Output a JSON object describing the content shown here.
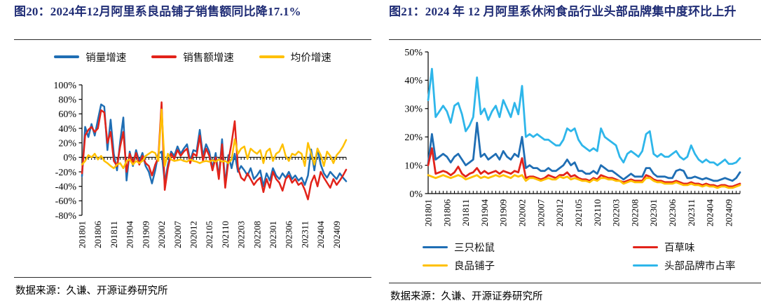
{
  "figure20": {
    "title": "图20：2024年12月阿里系良品铺子销售额同比降17.1%",
    "source": "数据来源：久谦、开源证券研究所"
  },
  "figure21": {
    "title": "图21：2024 年 12 月阿里系休闲食品行业头部品牌集中度环比上升",
    "source": "数据来源：久谦、开源证券研究所"
  },
  "chart_data": [
    {
      "id": "fig20",
      "type": "line",
      "title": "2024年12月阿里系良品铺子销售额同比降17.1%",
      "x": [
        "201801",
        "201802",
        "201803",
        "201804",
        "201805",
        "201806",
        "201807",
        "201808",
        "201809",
        "201810",
        "201811",
        "201812",
        "201901",
        "201902",
        "201903",
        "201904",
        "201905",
        "201906",
        "201907",
        "201908",
        "201909",
        "201910",
        "201911",
        "201912",
        "202001",
        "202002",
        "202003",
        "202004",
        "202005",
        "202006",
        "202007",
        "202008",
        "202009",
        "202010",
        "202011",
        "202012",
        "202101",
        "202102",
        "202103",
        "202104",
        "202105",
        "202106",
        "202107",
        "202108",
        "202109",
        "202110",
        "202111",
        "202112",
        "202201",
        "202202",
        "202203",
        "202204",
        "202205",
        "202206",
        "202207",
        "202208",
        "202209",
        "202210",
        "202211",
        "202212",
        "202301",
        "202302",
        "202303",
        "202304",
        "202305",
        "202306",
        "202307",
        "202308",
        "202309",
        "202310",
        "202311",
        "202312",
        "202401",
        "202402",
        "202403",
        "202404",
        "202405",
        "202406",
        "202407",
        "202408",
        "202409",
        "202410",
        "202411",
        "202412"
      ],
      "x_tick_every": 5,
      "x_tick_labels": [
        "201801",
        "201806",
        "201811",
        "201904",
        "201909",
        "202002",
        "202007",
        "202012",
        "202105",
        "202110",
        "202203",
        "202208",
        "202301",
        "202306",
        "202311",
        "202404",
        "202409"
      ],
      "ylim": [
        -80,
        100
      ],
      "yticks": [
        100,
        80,
        60,
        40,
        20,
        0,
        -20,
        -40,
        -60,
        -80
      ],
      "y_unit": "%",
      "x_axis_at": "zero",
      "grid": false,
      "legend_position": "top",
      "axis_color": "#000000",
      "series": [
        {
          "name": "销量增速",
          "color": "#1F6EB4",
          "values": [
            -26,
            42,
            28,
            46,
            30,
            52,
            73,
            70,
            10,
            52,
            5,
            -18,
            22,
            55,
            -32,
            8,
            -12,
            10,
            -6,
            6,
            -12,
            -20,
            -36,
            -18,
            5,
            8,
            -35,
            -10,
            8,
            2,
            15,
            5,
            12,
            18,
            -5,
            10,
            8,
            38,
            2,
            18,
            8,
            -15,
            6,
            -28,
            25,
            -38,
            3,
            -15,
            5,
            -20,
            -12,
            -18,
            -25,
            -15,
            -30,
            -25,
            -18,
            -40,
            -22,
            -32,
            -15,
            -25,
            -30,
            -22,
            -28,
            -20,
            -30,
            -25,
            -32,
            -28,
            -38,
            -25,
            11,
            -18,
            12,
            -10,
            -22,
            -28,
            -20,
            -25,
            -30,
            -22,
            -28,
            -33
          ]
        },
        {
          "name": "销售额增速",
          "color": "#E2231A",
          "values": [
            -22,
            30,
            38,
            42,
            35,
            40,
            65,
            62,
            20,
            35,
            -5,
            -12,
            15,
            35,
            -20,
            5,
            -8,
            6,
            -10,
            2,
            -8,
            -12,
            -25,
            -10,
            0,
            76,
            -45,
            -15,
            5,
            -2,
            10,
            2,
            8,
            12,
            -8,
            5,
            2,
            30,
            -5,
            12,
            2,
            -18,
            0,
            -30,
            18,
            -42,
            -5,
            20,
            50,
            -15,
            -28,
            -32,
            -22,
            -30,
            -38,
            -32,
            -28,
            -48,
            -30,
            -42,
            -20,
            -30,
            -35,
            -46,
            -30,
            -25,
            -35,
            -30,
            -38,
            -35,
            -45,
            -58,
            -35,
            -25,
            -40,
            -20,
            -28,
            -35,
            -42,
            -30,
            -38,
            -32,
            -25,
            -17
          ]
        },
        {
          "name": "均价增速",
          "color": "#FFC000",
          "values": [
            -10,
            -5,
            3,
            0,
            5,
            -3,
            2,
            -5,
            -8,
            -12,
            -15,
            -10,
            -8,
            -15,
            -5,
            -3,
            -10,
            -5,
            -8,
            -5,
            2,
            5,
            8,
            6,
            -5,
            66,
            -12,
            5,
            -3,
            -5,
            -4,
            -3,
            -5,
            -6,
            -3,
            -5,
            -6,
            -8,
            -6,
            -5,
            -6,
            -4,
            -6,
            -3,
            -6,
            -5,
            -8,
            -3,
            25,
            5,
            12,
            15,
            -2,
            12,
            8,
            5,
            10,
            -8,
            8,
            12,
            -5,
            5,
            8,
            18,
            2,
            -5,
            5,
            3,
            8,
            5,
            -12,
            20,
            5,
            -10,
            12,
            3,
            -12,
            8,
            2,
            -8,
            3,
            8,
            15,
            24
          ]
        }
      ]
    },
    {
      "id": "fig21",
      "type": "line",
      "title": "2024年12月阿里系休闲食品行业头部品牌集中度环比上升",
      "x": [
        "201801",
        "201802",
        "201803",
        "201804",
        "201805",
        "201806",
        "201807",
        "201808",
        "201809",
        "201810",
        "201811",
        "201812",
        "201901",
        "201902",
        "201903",
        "201904",
        "201905",
        "201906",
        "201907",
        "201908",
        "201909",
        "201910",
        "201911",
        "201912",
        "202001",
        "202002",
        "202003",
        "202004",
        "202005",
        "202006",
        "202007",
        "202008",
        "202009",
        "202010",
        "202011",
        "202012",
        "202101",
        "202102",
        "202103",
        "202104",
        "202105",
        "202106",
        "202107",
        "202108",
        "202109",
        "202110",
        "202111",
        "202112",
        "202201",
        "202202",
        "202203",
        "202204",
        "202205",
        "202206",
        "202207",
        "202208",
        "202209",
        "202210",
        "202211",
        "202212",
        "202301",
        "202302",
        "202303",
        "202304",
        "202305",
        "202306",
        "202307",
        "202308",
        "202309",
        "202310",
        "202311",
        "202312",
        "202401",
        "202402",
        "202403",
        "202404",
        "202405",
        "202406",
        "202407",
        "202408",
        "202409",
        "202410",
        "202411",
        "202412"
      ],
      "x_tick_every": 5,
      "x_tick_labels": [
        "201801",
        "201806",
        "201811",
        "201904",
        "201909",
        "202002",
        "202007",
        "202012",
        "202105",
        "202110",
        "202203",
        "202208",
        "202301",
        "202306",
        "202311",
        "202404",
        "202409"
      ],
      "ylim": [
        0,
        50
      ],
      "yticks": [
        50,
        40,
        30,
        20,
        10,
        0
      ],
      "y_unit": "%",
      "x_axis_at": "bottom",
      "grid": false,
      "legend_position": "bottom",
      "axis_color": "#000000",
      "series": [
        {
          "name": "三只松鼠",
          "color": "#1F6EB4",
          "values": [
            10.5,
            21,
            12,
            13,
            14,
            13,
            11,
            13,
            14,
            12,
            10,
            11,
            12,
            25,
            13,
            14,
            12,
            13,
            14,
            12,
            15,
            13,
            12,
            14,
            13,
            20,
            9,
            10,
            9,
            9,
            8,
            8,
            9,
            8,
            8,
            9,
            10,
            12,
            10,
            11,
            8,
            8,
            7,
            7,
            8,
            7,
            10,
            9,
            8,
            8,
            7,
            6,
            5,
            6,
            7,
            6,
            6,
            6,
            9,
            9,
            7,
            6,
            6,
            6,
            5.5,
            5.5,
            8,
            8.5,
            8,
            5.5,
            5.5,
            6,
            5.5,
            5,
            5.5,
            5,
            4.5,
            4.5,
            5,
            5.5,
            5,
            4.5,
            5.5,
            7.5
          ]
        },
        {
          "name": "百草味",
          "color": "#E2231A",
          "values": [
            10,
            16,
            7,
            7.5,
            8,
            7.5,
            6.5,
            7.5,
            9.5,
            7,
            6,
            7,
            7.5,
            9,
            7,
            8,
            7,
            7.5,
            8,
            7,
            8,
            7.5,
            7,
            8,
            7.5,
            12.5,
            5.5,
            6,
            6,
            5.5,
            5,
            5.5,
            6.5,
            6,
            5.5,
            6.5,
            6.5,
            7.5,
            6,
            6.5,
            5.5,
            5,
            5,
            4.5,
            5.5,
            5,
            6.5,
            6,
            5.5,
            5.5,
            5,
            4.5,
            4,
            4.5,
            5,
            4.5,
            4.5,
            4.5,
            6.5,
            6,
            5,
            4.5,
            4.5,
            4,
            4,
            4,
            4.5,
            4,
            3.5,
            3.5,
            4,
            3.5,
            3.5,
            3,
            3.5,
            3,
            3,
            2.5,
            3,
            3,
            2.5,
            2.5,
            3,
            3.5
          ]
        },
        {
          "name": "良品铺子",
          "color": "#FFC000",
          "values": [
            6.5,
            6,
            5.5,
            6,
            6.5,
            6,
            5.5,
            6,
            6.5,
            6,
            5,
            5.5,
            6,
            6.5,
            5.5,
            6,
            5.5,
            6,
            6.5,
            6,
            6.5,
            6,
            5.5,
            6.5,
            6,
            6.5,
            4.5,
            5.5,
            5.5,
            5,
            4.5,
            5,
            5.5,
            5,
            5,
            6,
            5.5,
            6,
            5,
            5.5,
            5,
            4.5,
            4.5,
            4,
            5,
            4.5,
            5.5,
            5.5,
            5,
            5,
            4.5,
            4.5,
            3.5,
            4,
            4.5,
            4,
            4,
            4,
            5.5,
            5.5,
            4.5,
            4,
            4,
            3.5,
            3.5,
            3.5,
            4,
            3.5,
            3,
            3,
            3.5,
            3,
            3,
            2.5,
            3,
            2.5,
            2.5,
            2,
            2.5,
            2.5,
            2,
            2,
            2.5,
            3
          ]
        },
        {
          "name": "头部品牌市占率",
          "color": "#2EB6EA",
          "values": [
            33,
            44,
            27,
            29,
            31,
            29,
            25,
            31,
            32,
            28,
            22,
            24,
            27,
            41,
            28,
            30,
            26,
            29,
            31,
            27,
            33,
            30,
            27,
            32,
            28,
            38,
            20,
            21,
            20,
            21,
            20,
            19,
            19,
            18,
            17,
            17,
            19,
            23,
            22,
            23,
            19,
            17,
            16,
            15,
            16,
            15,
            23,
            20,
            19,
            18,
            17,
            13,
            11,
            14,
            15,
            14,
            13,
            15,
            21,
            22,
            14,
            13,
            14,
            13,
            13,
            14,
            15,
            13,
            12,
            13,
            17,
            14,
            12,
            11,
            12,
            11,
            11,
            10,
            11,
            12,
            10.5,
            10.5,
            11,
            12.5
          ]
        }
      ]
    }
  ]
}
